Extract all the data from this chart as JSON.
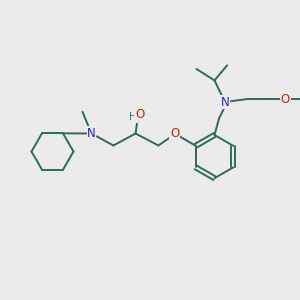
{
  "background_color": "#ebebeb",
  "bond_color": "#2d6b5e",
  "nitrogen_color": "#2020cc",
  "oxygen_color": "#cc2000",
  "hydrogen_color": "#507070",
  "figsize": [
    3.0,
    3.0
  ],
  "dpi": 100,
  "xlim": [
    0,
    10
  ],
  "ylim": [
    0,
    10
  ]
}
